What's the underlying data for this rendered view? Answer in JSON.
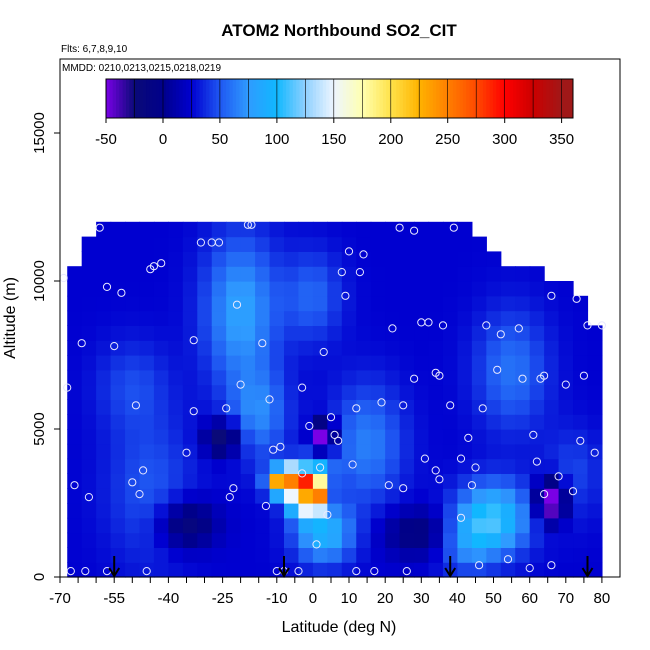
{
  "chart_data": {
    "type": "heatmap",
    "title": "ATOM2 Northbound SO2_CIT",
    "flights_note": "Flts: 6,7,8,9,10",
    "dates_note": "MMDD: 0210,0213,0215,0218,0219",
    "xlabel": "Latitude (deg N)",
    "ylabel": "Altitude (m)",
    "xlim": [
      -70,
      85
    ],
    "ylim": [
      0,
      17500
    ],
    "x_ticks": [
      -70,
      -55,
      -40,
      -25,
      -10,
      0,
      10,
      20,
      30,
      40,
      50,
      60,
      70,
      80
    ],
    "x_tick_labels": [
      "-70",
      "-55",
      "-40",
      "-25",
      "-10",
      "0",
      "10",
      "20",
      "30",
      "40",
      "50",
      "60",
      "70",
      "80"
    ],
    "y_ticks": [
      0,
      5000,
      10000,
      15000
    ],
    "y_tick_labels": [
      "0",
      "5000",
      "10000",
      "15000"
    ],
    "colorbar": {
      "min": -50,
      "max": 360,
      "ticks": [
        -50,
        0,
        50,
        100,
        150,
        200,
        250,
        300,
        350
      ],
      "tick_labels": [
        "-50",
        "0",
        "50",
        "100",
        "150",
        "200",
        "250",
        "300",
        "350"
      ],
      "stops": [
        {
          "v": -50,
          "c": "#7a00e6"
        },
        {
          "v": -25,
          "c": "#0a0a78"
        },
        {
          "v": 0,
          "c": "#00008b"
        },
        {
          "v": 25,
          "c": "#0000d0"
        },
        {
          "v": 50,
          "c": "#1f57f2"
        },
        {
          "v": 75,
          "c": "#2f9bff"
        },
        {
          "v": 100,
          "c": "#10b8ff"
        },
        {
          "v": 125,
          "c": "#8fd0ff"
        },
        {
          "v": 150,
          "c": "#eef6ff"
        },
        {
          "v": 175,
          "c": "#ffffb0"
        },
        {
          "v": 200,
          "c": "#ffe24a"
        },
        {
          "v": 225,
          "c": "#ffb300"
        },
        {
          "v": 250,
          "c": "#ff7f00"
        },
        {
          "v": 275,
          "c": "#ff4a00"
        },
        {
          "v": 300,
          "c": "#ff0000"
        },
        {
          "v": 325,
          "c": "#cc0000"
        },
        {
          "v": 350,
          "c": "#a01818"
        }
      ]
    },
    "field": {
      "lat_start": -68,
      "lat_end": 80,
      "lat_step": 4,
      "alt_start": 0,
      "alt_step": 500,
      "background_value": 25,
      "max_alt_by_lat": [
        [
          -68,
          10000
        ],
        [
          -63,
          11000
        ],
        [
          -58,
          12000
        ],
        [
          -18,
          12000
        ],
        [
          38,
          12000
        ],
        [
          44,
          11500
        ],
        [
          54,
          10500
        ],
        [
          66,
          10000
        ],
        [
          74,
          9500
        ],
        [
          78,
          8500
        ],
        [
          80,
          6500
        ]
      ],
      "features": [
        {
          "lat": -20,
          "alt": 9000,
          "slat": 10,
          "salt": 2500,
          "val": 55
        },
        {
          "lat": -15,
          "alt": 5500,
          "slat": 8,
          "salt": 1500,
          "val": 40
        },
        {
          "lat": 0,
          "alt": 9500,
          "slat": 8,
          "salt": 1500,
          "val": 30
        },
        {
          "lat": 15,
          "alt": 4500,
          "slat": 10,
          "salt": 2000,
          "val": 40
        },
        {
          "lat": -45,
          "alt": 3000,
          "slat": 12,
          "salt": 2500,
          "val": 25
        },
        {
          "lat": 50,
          "alt": 2000,
          "slat": 10,
          "salt": 1200,
          "val": 80
        },
        {
          "lat": 42,
          "alt": 1200,
          "slat": 8,
          "salt": 1000,
          "val": 40
        },
        {
          "lat": 3,
          "alt": 1500,
          "slat": 8,
          "salt": 1000,
          "val": 70
        },
        {
          "lat": -4,
          "alt": 3000,
          "slat": 4,
          "salt": 600,
          "val": 140
        },
        {
          "lat": -7,
          "alt": 3250,
          "slat": 5,
          "salt": 500,
          "val": 170
        },
        {
          "lat": -2,
          "alt": 2750,
          "slat": 4,
          "salt": 700,
          "val": 120
        },
        {
          "lat": 0,
          "alt": 3600,
          "slat": 5,
          "salt": 500,
          "val": 70
        },
        {
          "lat": -50,
          "alt": 6500,
          "slat": 10,
          "salt": 1500,
          "val": 20
        },
        {
          "lat": 55,
          "alt": 7000,
          "slat": 10,
          "salt": 2000,
          "val": 35
        },
        {
          "lat": 72,
          "alt": 3500,
          "slat": 8,
          "salt": 1500,
          "val": 20
        },
        {
          "lat": -35,
          "alt": 1800,
          "slat": 8,
          "salt": 800,
          "val": -50
        },
        {
          "lat": -25,
          "alt": 4700,
          "slat": 5,
          "salt": 600,
          "val": -60
        },
        {
          "lat": 3,
          "alt": 4800,
          "slat": 3,
          "salt": 500,
          "val": -100
        },
        {
          "lat": 66,
          "alt": 2600,
          "slat": 4,
          "salt": 700,
          "val": -100
        },
        {
          "lat": 30,
          "alt": 1500,
          "slat": 10,
          "salt": 800,
          "val": -40
        }
      ],
      "hotspot_cells": [
        {
          "lat": -10,
          "alt": 3250,
          "val": 230
        },
        {
          "lat": -6,
          "alt": 3250,
          "val": 250
        },
        {
          "lat": -2,
          "alt": 3250,
          "val": 290
        },
        {
          "lat": 2,
          "alt": 3250,
          "val": 180
        },
        {
          "lat": -6,
          "alt": 2750,
          "val": 150
        },
        {
          "lat": -2,
          "alt": 2750,
          "val": 230
        },
        {
          "lat": 2,
          "alt": 2750,
          "val": 250
        },
        {
          "lat": -2,
          "alt": 3750,
          "val": 110
        },
        {
          "lat": 2,
          "alt": 2250,
          "val": 140
        }
      ]
    },
    "sample_points": [
      [
        -69,
        10100
      ],
      [
        -68,
        6400
      ],
      [
        -67,
        200
      ],
      [
        -66,
        3100
      ],
      [
        -64,
        7900
      ],
      [
        -63,
        200
      ],
      [
        -62,
        2700
      ],
      [
        -59,
        11800
      ],
      [
        -57,
        200
      ],
      [
        -57,
        9800
      ],
      [
        -55,
        7800
      ],
      [
        -53,
        9600
      ],
      [
        -50,
        3200
      ],
      [
        -49,
        5800
      ],
      [
        -48,
        2800
      ],
      [
        -47,
        3600
      ],
      [
        -46,
        200
      ],
      [
        -45,
        10400
      ],
      [
        -44,
        10500
      ],
      [
        -42,
        10600
      ],
      [
        -35,
        4200
      ],
      [
        -33,
        8000
      ],
      [
        -33,
        5600
      ],
      [
        -31,
        11300
      ],
      [
        -28,
        11300
      ],
      [
        -26,
        11300
      ],
      [
        -24,
        5700
      ],
      [
        -23,
        2700
      ],
      [
        -22,
        3000
      ],
      [
        -21,
        9200
      ],
      [
        -20,
        6500
      ],
      [
        -18,
        11900
      ],
      [
        -17,
        11900
      ],
      [
        -14,
        7900
      ],
      [
        -13,
        2400
      ],
      [
        -12,
        6000
      ],
      [
        -11,
        4300
      ],
      [
        -10,
        200
      ],
      [
        -9,
        4400
      ],
      [
        -8,
        200
      ],
      [
        -4,
        200
      ],
      [
        -3,
        3500
      ],
      [
        -3,
        6400
      ],
      [
        -1,
        5100
      ],
      [
        1,
        1100
      ],
      [
        2,
        3700
      ],
      [
        3,
        7600
      ],
      [
        4,
        2100
      ],
      [
        5,
        5400
      ],
      [
        6,
        4800
      ],
      [
        7,
        4600
      ],
      [
        8,
        10300
      ],
      [
        9,
        9500
      ],
      [
        10,
        11000
      ],
      [
        11,
        3800
      ],
      [
        12,
        5700
      ],
      [
        12,
        200
      ],
      [
        13,
        10300
      ],
      [
        14,
        10900
      ],
      [
        17,
        200
      ],
      [
        19,
        5900
      ],
      [
        21,
        3100
      ],
      [
        22,
        8400
      ],
      [
        24,
        11800
      ],
      [
        25,
        5800
      ],
      [
        25,
        3000
      ],
      [
        26,
        200
      ],
      [
        28,
        11700
      ],
      [
        28,
        6700
      ],
      [
        30,
        8600
      ],
      [
        31,
        4000
      ],
      [
        32,
        8600
      ],
      [
        34,
        6900
      ],
      [
        34,
        3600
      ],
      [
        35,
        3300
      ],
      [
        35,
        6800
      ],
      [
        36,
        8500
      ],
      [
        38,
        5800
      ],
      [
        39,
        11800
      ],
      [
        41,
        2000
      ],
      [
        41,
        4000
      ],
      [
        43,
        4700
      ],
      [
        44,
        3100
      ],
      [
        45,
        3700
      ],
      [
        46,
        400
      ],
      [
        47,
        5700
      ],
      [
        48,
        8500
      ],
      [
        51,
        7000
      ],
      [
        52,
        8200
      ],
      [
        54,
        600
      ],
      [
        57,
        8400
      ],
      [
        58,
        6700
      ],
      [
        60,
        300
      ],
      [
        61,
        4800
      ],
      [
        62,
        3900
      ],
      [
        63,
        6700
      ],
      [
        64,
        6800
      ],
      [
        64,
        2800
      ],
      [
        66,
        9500
      ],
      [
        66,
        400
      ],
      [
        68,
        3400
      ],
      [
        70,
        6500
      ],
      [
        72,
        2900
      ],
      [
        73,
        9400
      ],
      [
        74,
        4600
      ],
      [
        75,
        6800
      ],
      [
        76,
        8500
      ],
      [
        78,
        4200
      ],
      [
        80,
        8500
      ]
    ],
    "arrows_lat": [
      -55,
      -8,
      38,
      76
    ]
  }
}
